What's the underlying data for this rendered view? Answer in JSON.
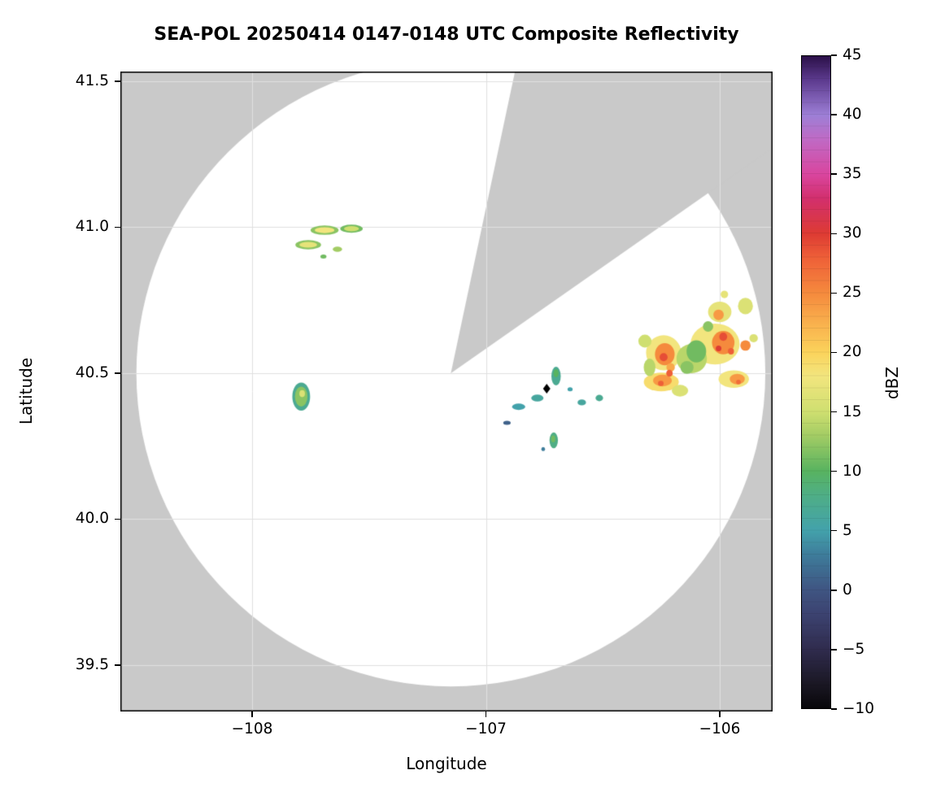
{
  "chart_data": {
    "type": "heatmap",
    "title": "SEA-POL 20250414 0147-0148 UTC Composite Reflectivity",
    "xlabel": "Longitude",
    "ylabel": "Latitude",
    "xlim": [
      -108.5635,
      -105.7739
    ],
    "ylim": [
      39.3412,
      41.5334
    ],
    "grid": true,
    "x_ticks": [
      {
        "value": -108,
        "label": "−108"
      },
      {
        "value": -107,
        "label": "−107"
      },
      {
        "value": -106,
        "label": "−106"
      }
    ],
    "y_ticks": [
      {
        "value": 39.5,
        "label": "39.5"
      },
      {
        "value": 40.0,
        "label": "40.0"
      },
      {
        "value": 40.5,
        "label": "40.5"
      },
      {
        "value": 41.0,
        "label": "41.0"
      },
      {
        "value": 41.5,
        "label": "41.5"
      }
    ],
    "colors": {
      "outside": "#c9c9c9",
      "inside": "#ffffff",
      "grid": "#e0e0e0",
      "axis": "#000000"
    },
    "radar": {
      "center_lon": -107.15,
      "center_lat": 40.5,
      "radius_lon_deg": 1.345,
      "radius_lat_deg": 1.073,
      "blocked_sector_deg": [
        12,
        55
      ]
    },
    "site_marker": {
      "lon": -106.74,
      "lat": 40.447,
      "shape": "diamond",
      "color": "#000000"
    },
    "colorbar": {
      "label": "dBZ",
      "min": -10,
      "max": 45,
      "ticks": [
        {
          "value": 45,
          "label": "45"
        },
        {
          "value": 40,
          "label": "40"
        },
        {
          "value": 35,
          "label": "35"
        },
        {
          "value": 30,
          "label": "30"
        },
        {
          "value": 25,
          "label": "25"
        },
        {
          "value": 20,
          "label": "20"
        },
        {
          "value": 15,
          "label": "15"
        },
        {
          "value": 10,
          "label": "10"
        },
        {
          "value": 5,
          "label": "5"
        },
        {
          "value": 0,
          "label": "0"
        },
        {
          "value": -5,
          "label": "−5"
        },
        {
          "value": -10,
          "label": "−10"
        }
      ]
    },
    "colormap_stops": [
      {
        "value": -10,
        "color": "#08070a"
      },
      {
        "value": -8,
        "color": "#1a1723"
      },
      {
        "value": -5,
        "color": "#302c4e"
      },
      {
        "value": -2,
        "color": "#3c4371"
      },
      {
        "value": 0,
        "color": "#3f5582"
      },
      {
        "value": 3,
        "color": "#3e7d9b"
      },
      {
        "value": 5,
        "color": "#43a2ab"
      },
      {
        "value": 8,
        "color": "#4fae85"
      },
      {
        "value": 10,
        "color": "#58b360"
      },
      {
        "value": 13,
        "color": "#a3cc64"
      },
      {
        "value": 15,
        "color": "#cfdf70"
      },
      {
        "value": 18,
        "color": "#f2e57e"
      },
      {
        "value": 20,
        "color": "#fbd35b"
      },
      {
        "value": 23,
        "color": "#f8a84a"
      },
      {
        "value": 25,
        "color": "#f58a3d"
      },
      {
        "value": 28,
        "color": "#ee5f38"
      },
      {
        "value": 30,
        "color": "#dd3b33"
      },
      {
        "value": 33,
        "color": "#d22f6d"
      },
      {
        "value": 35,
        "color": "#d9459e"
      },
      {
        "value": 38,
        "color": "#bf6ac5"
      },
      {
        "value": 40,
        "color": "#9d7fd6"
      },
      {
        "value": 43,
        "color": "#5c3a8e"
      },
      {
        "value": 45,
        "color": "#2b1048"
      }
    ],
    "echoes_format": [
      "lon",
      "lat",
      "rx_deg",
      "ry_deg",
      "dbz"
    ],
    "echoes": [
      [
        -107.76,
        40.94,
        0.055,
        0.016,
        12
      ],
      [
        -107.76,
        40.94,
        0.038,
        0.01,
        17
      ],
      [
        -107.69,
        40.99,
        0.06,
        0.016,
        12
      ],
      [
        -107.69,
        40.99,
        0.042,
        0.01,
        18
      ],
      [
        -107.575,
        40.995,
        0.048,
        0.014,
        11
      ],
      [
        -107.575,
        40.995,
        0.032,
        0.009,
        15
      ],
      [
        -107.635,
        40.925,
        0.02,
        0.009,
        13
      ],
      [
        -107.695,
        40.9,
        0.013,
        0.007,
        11
      ],
      [
        -107.79,
        40.42,
        0.038,
        0.048,
        7
      ],
      [
        -107.79,
        40.42,
        0.027,
        0.034,
        12
      ],
      [
        -107.786,
        40.43,
        0.012,
        0.012,
        16
      ],
      [
        -106.7,
        40.49,
        0.02,
        0.032,
        7
      ],
      [
        -106.7,
        40.5,
        0.011,
        0.014,
        10
      ],
      [
        -106.78,
        40.415,
        0.026,
        0.012,
        6
      ],
      [
        -106.86,
        40.385,
        0.028,
        0.011,
        5
      ],
      [
        -106.91,
        40.33,
        0.016,
        0.007,
        1
      ],
      [
        -106.59,
        40.4,
        0.018,
        0.01,
        6
      ],
      [
        -106.515,
        40.415,
        0.016,
        0.011,
        7
      ],
      [
        -106.71,
        40.27,
        0.018,
        0.027,
        8
      ],
      [
        -106.712,
        40.275,
        0.009,
        0.012,
        11
      ],
      [
        -106.755,
        40.24,
        0.008,
        0.007,
        3
      ],
      [
        -106.64,
        40.445,
        0.011,
        0.007,
        5
      ],
      [
        -106.24,
        40.57,
        0.075,
        0.06,
        18
      ],
      [
        -106.25,
        40.47,
        0.075,
        0.032,
        19
      ],
      [
        -106.02,
        40.6,
        0.105,
        0.07,
        18
      ],
      [
        -105.94,
        40.48,
        0.065,
        0.03,
        18
      ],
      [
        -106.0,
        40.71,
        0.05,
        0.035,
        17
      ],
      [
        -105.89,
        40.73,
        0.032,
        0.028,
        16
      ],
      [
        -106.12,
        40.55,
        0.065,
        0.05,
        14
      ],
      [
        -106.32,
        40.61,
        0.028,
        0.022,
        15
      ],
      [
        -105.98,
        40.77,
        0.016,
        0.013,
        17
      ],
      [
        -105.855,
        40.62,
        0.018,
        0.014,
        16
      ],
      [
        -106.17,
        40.44,
        0.035,
        0.02,
        16
      ],
      [
        -106.3,
        40.52,
        0.025,
        0.03,
        14
      ],
      [
        -106.1,
        40.575,
        0.042,
        0.038,
        11
      ],
      [
        -106.14,
        40.52,
        0.028,
        0.022,
        12
      ],
      [
        -106.05,
        40.66,
        0.022,
        0.018,
        12
      ],
      [
        -106.235,
        40.565,
        0.042,
        0.038,
        25
      ],
      [
        -106.245,
        40.475,
        0.04,
        0.02,
        24
      ],
      [
        -105.985,
        40.605,
        0.048,
        0.04,
        25
      ],
      [
        -105.925,
        40.48,
        0.032,
        0.018,
        24
      ],
      [
        -106.005,
        40.7,
        0.022,
        0.018,
        24
      ],
      [
        -105.89,
        40.595,
        0.022,
        0.018,
        25
      ],
      [
        -106.21,
        40.52,
        0.018,
        0.015,
        23
      ],
      [
        -106.24,
        40.555,
        0.017,
        0.014,
        29
      ],
      [
        -106.215,
        40.5,
        0.014,
        0.012,
        28
      ],
      [
        -105.985,
        40.625,
        0.017,
        0.014,
        29
      ],
      [
        -105.952,
        40.575,
        0.013,
        0.011,
        28
      ],
      [
        -106.252,
        40.465,
        0.012,
        0.009,
        28
      ],
      [
        -105.92,
        40.47,
        0.01,
        0.008,
        27
      ],
      [
        -106.005,
        40.585,
        0.012,
        0.01,
        30
      ]
    ]
  }
}
